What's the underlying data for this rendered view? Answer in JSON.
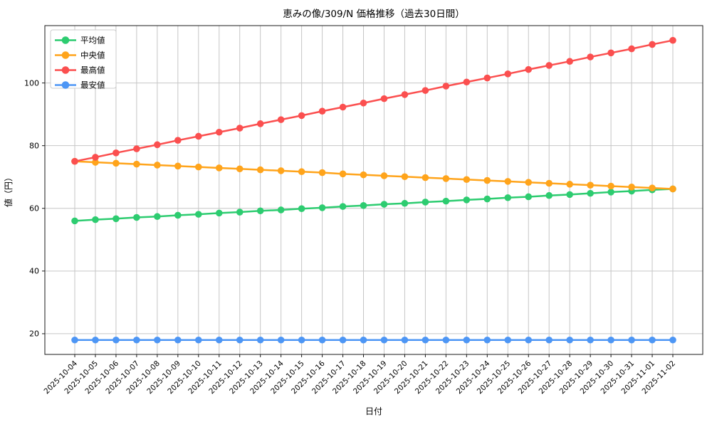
{
  "chart_data": {
    "type": "line",
    "title": "恵みの像/309/N 価格推移（過去30日間）",
    "xlabel": "日付",
    "ylabel": "値（円）",
    "x": [
      "2025-10-04",
      "2025-10-05",
      "2025-10-06",
      "2025-10-07",
      "2025-10-08",
      "2025-10-09",
      "2025-10-10",
      "2025-10-11",
      "2025-10-12",
      "2025-10-13",
      "2025-10-14",
      "2025-10-15",
      "2025-10-16",
      "2025-10-17",
      "2025-10-18",
      "2025-10-19",
      "2025-10-20",
      "2025-10-21",
      "2025-10-22",
      "2025-10-23",
      "2025-10-24",
      "2025-10-25",
      "2025-10-26",
      "2025-10-27",
      "2025-10-28",
      "2025-10-29",
      "2025-10-30",
      "2025-10-31",
      "2025-11-01",
      "2025-11-02"
    ],
    "series": [
      {
        "key": "average",
        "name": "平均値",
        "color": "#2dcc70",
        "values": [
          56.0,
          56.4,
          56.7,
          57.1,
          57.4,
          57.8,
          58.1,
          58.5,
          58.8,
          59.2,
          59.5,
          59.9,
          60.2,
          60.6,
          60.9,
          61.3,
          61.6,
          62.0,
          62.3,
          62.7,
          63.0,
          63.4,
          63.7,
          64.1,
          64.4,
          64.8,
          65.2,
          65.5,
          65.9,
          66.2
        ]
      },
      {
        "key": "median",
        "name": "中央値",
        "color": "#ffa41b",
        "values": [
          75.0,
          74.7,
          74.4,
          74.1,
          73.8,
          73.5,
          73.2,
          72.9,
          72.6,
          72.3,
          72.0,
          71.7,
          71.4,
          71.0,
          70.7,
          70.4,
          70.1,
          69.8,
          69.5,
          69.2,
          68.9,
          68.6,
          68.3,
          68.0,
          67.7,
          67.4,
          67.1,
          66.8,
          66.5,
          66.2
        ]
      },
      {
        "key": "max",
        "name": "最高値",
        "color": "#fb4f4f",
        "values": [
          75.0,
          76.3,
          77.7,
          79.0,
          80.3,
          81.7,
          83.0,
          84.3,
          85.6,
          87.0,
          88.3,
          89.6,
          91.0,
          92.3,
          93.6,
          95.0,
          96.3,
          97.6,
          99.0,
          100.3,
          101.6,
          102.9,
          104.3,
          105.6,
          106.9,
          108.3,
          109.6,
          110.9,
          112.3,
          113.6
        ]
      },
      {
        "key": "min",
        "name": "最安値",
        "color": "#4d96f5",
        "values": [
          18.0,
          18.0,
          18.0,
          18.0,
          18.0,
          18.0,
          18.0,
          18.0,
          18.0,
          18.0,
          18.0,
          18.0,
          18.0,
          18.0,
          18.0,
          18.0,
          18.0,
          18.0,
          18.0,
          18.0,
          18.0,
          18.0,
          18.0,
          18.0,
          18.0,
          18.0,
          18.0,
          18.0,
          18.0,
          18.0
        ]
      }
    ],
    "ylim": [
      13.4,
      118.3
    ],
    "yticks": [
      20,
      40,
      60,
      80,
      100
    ],
    "grid": true,
    "grid_color": "#c6c6c6",
    "spine_color": "#1a1a1a",
    "background": "#ffffff",
    "legend_position": "upper left",
    "legend_border_color": "#cccccc"
  }
}
